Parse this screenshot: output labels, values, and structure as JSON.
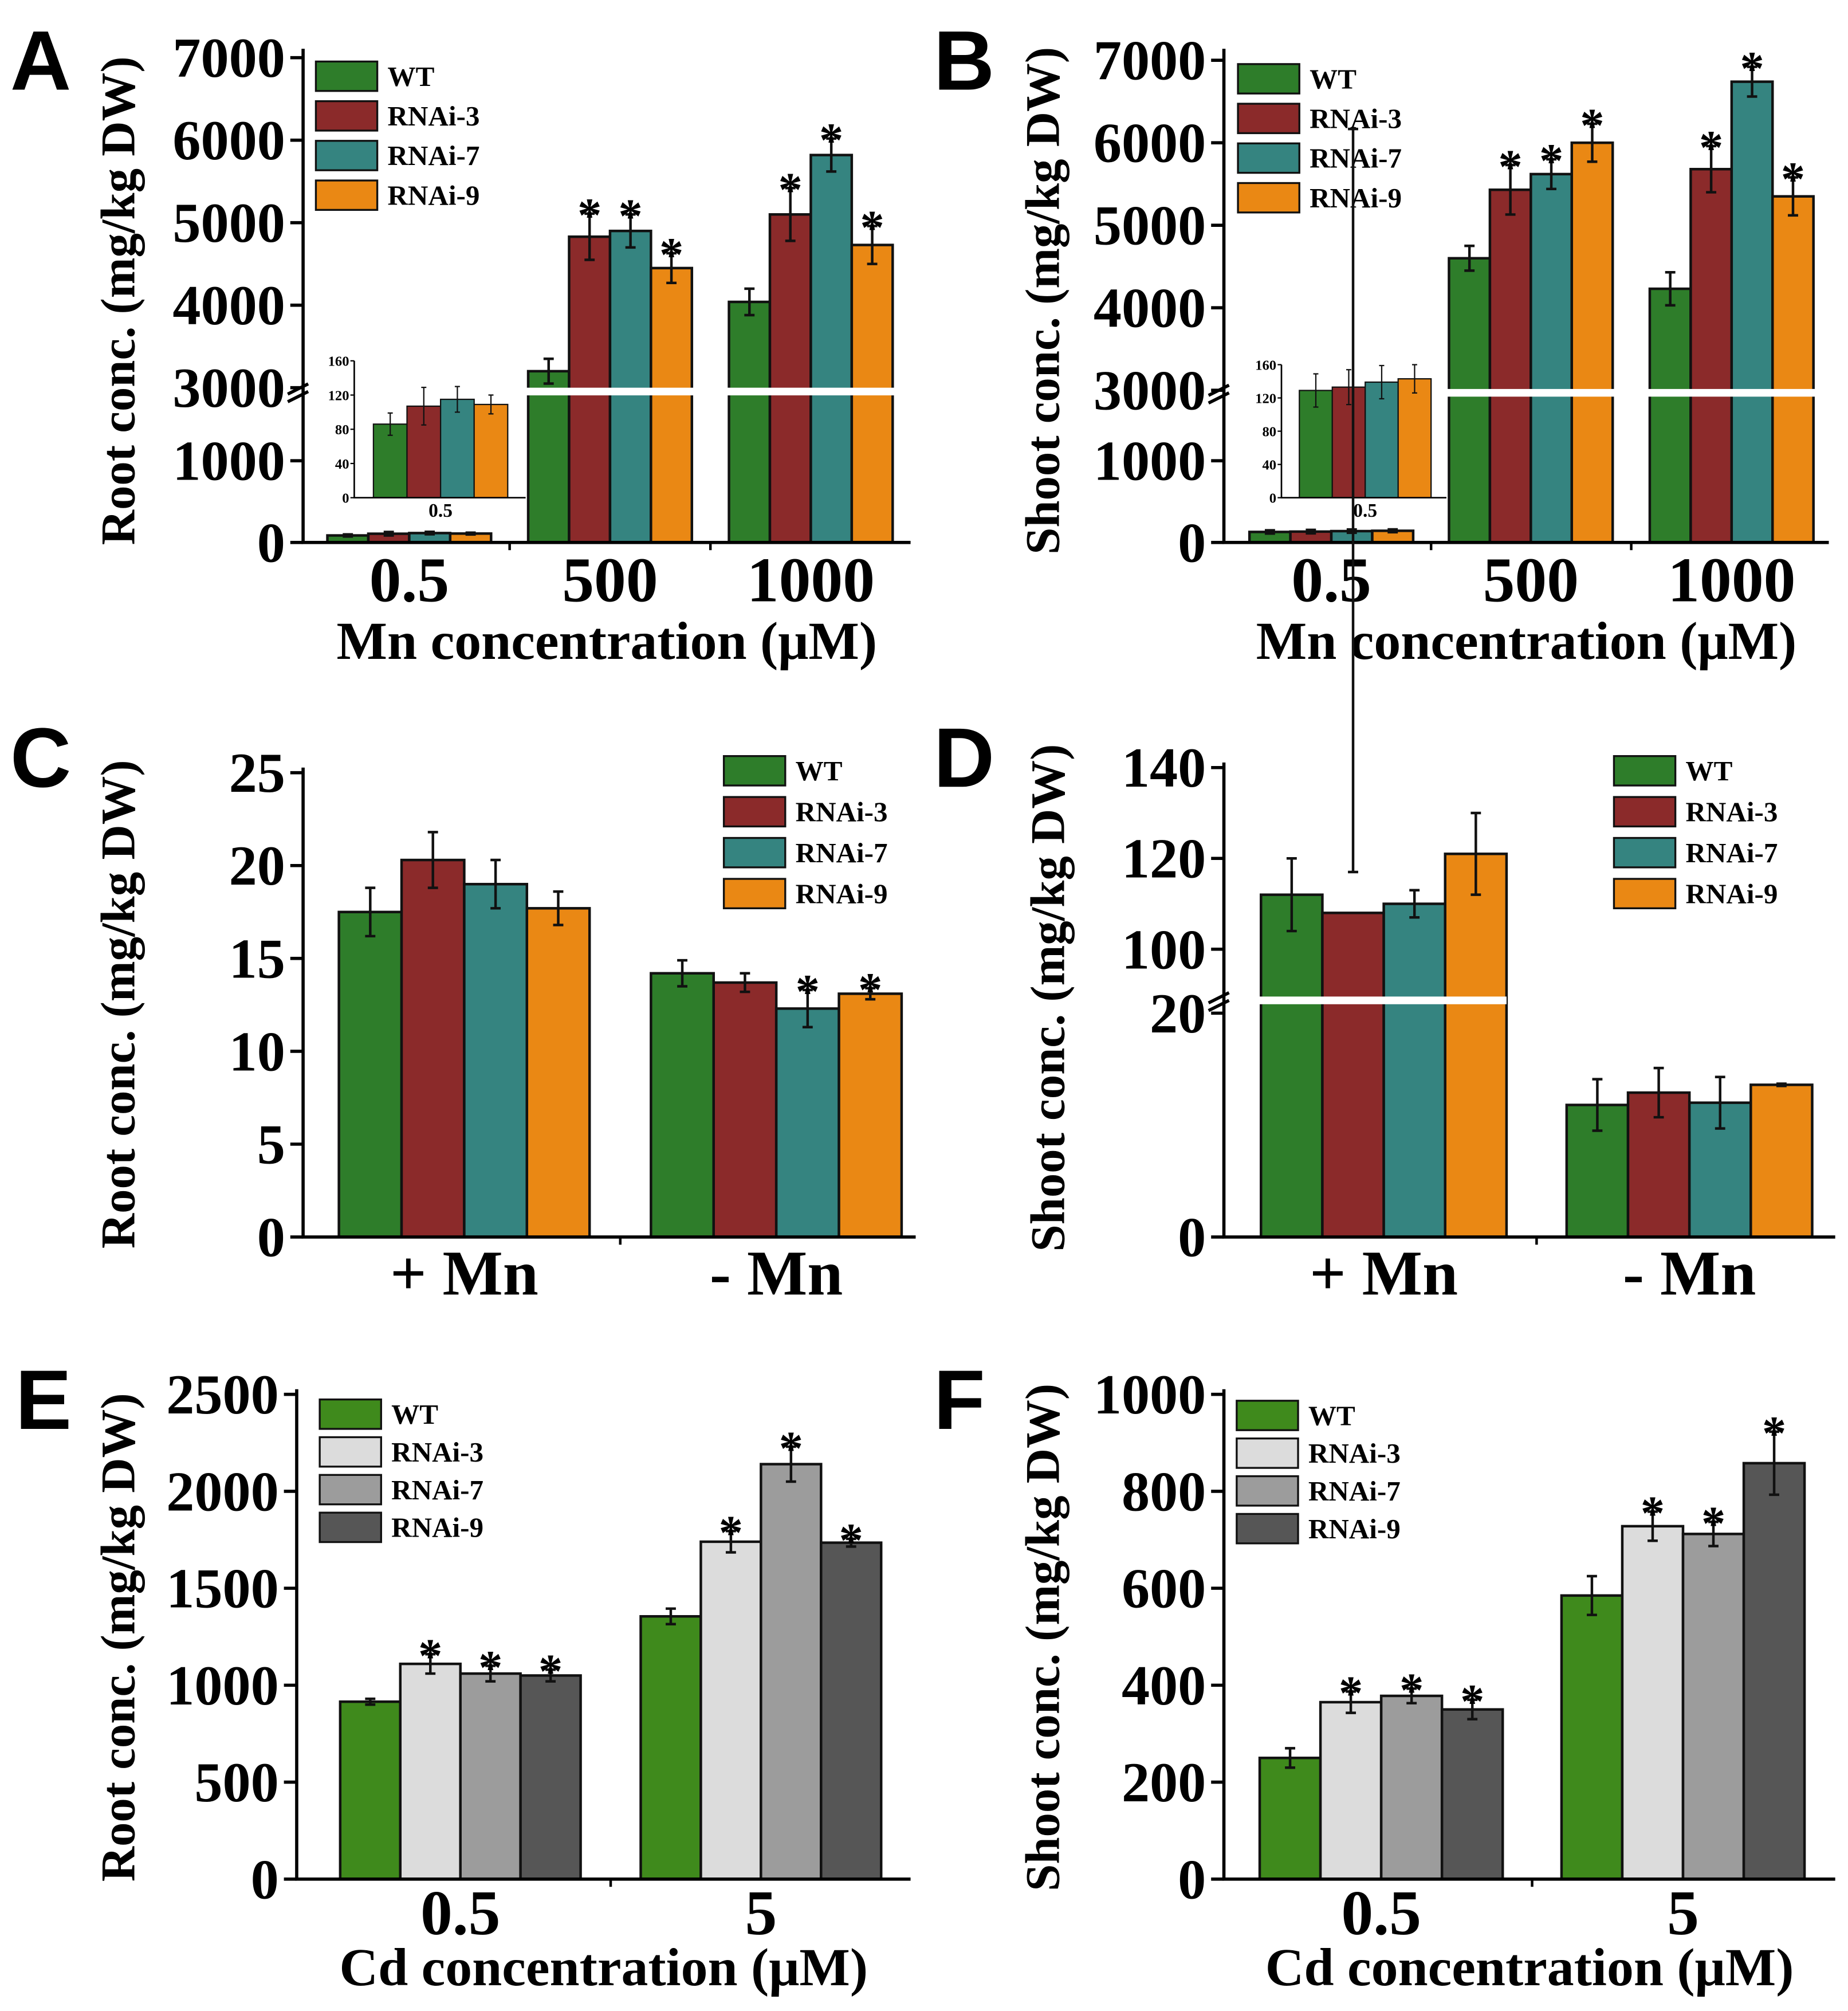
{
  "colors": {
    "WT": "#2e7d2a",
    "RNAi-3": "#8b2a2a",
    "RNAi-7": "#358480",
    "RNAi-9": "#ea8814",
    "cd_WT": "#3f8a1c",
    "cd_RNAi-3": "#dcdcdc",
    "cd_RNAi-7": "#9c9c9c",
    "cd_RNAi-9": "#565656"
  },
  "chart_data": [
    {
      "panel": "A",
      "type": "bar",
      "ylabel": "Root conc. (mg/kg DW)",
      "xlabel": "Mn concentration (μM)",
      "categories": [
        "0.5",
        "500",
        "1000"
      ],
      "y_segments": [
        [
          0,
          1800
        ],
        [
          3000,
          7000
        ]
      ],
      "yticks": [
        0,
        1000,
        3000,
        4000,
        5000,
        6000,
        7000
      ],
      "palette": "mn",
      "series": [
        {
          "name": "WT",
          "values": [
            86,
            3200,
            4040
          ],
          "errors": [
            13,
            150,
            160
          ],
          "stars": [
            false,
            false,
            false
          ]
        },
        {
          "name": "RNAi-3",
          "values": [
            107,
            4830,
            5100
          ],
          "errors": [
            22,
            280,
            320
          ],
          "stars": [
            false,
            true,
            true
          ]
        },
        {
          "name": "RNAi-7",
          "values": [
            115,
            4900,
            5820
          ],
          "errors": [
            15,
            200,
            200
          ],
          "stars": [
            false,
            true,
            true
          ]
        },
        {
          "name": "RNAi-9",
          "values": [
            109,
            4450,
            4730
          ],
          "errors": [
            11,
            180,
            230
          ],
          "stars": [
            false,
            true,
            true
          ]
        }
      ],
      "inset": {
        "category": "0.5",
        "yticks": [
          0,
          40,
          80,
          120,
          160
        ],
        "ylim": [
          0,
          160
        ]
      }
    },
    {
      "panel": "B",
      "type": "bar",
      "ylabel": "Shoot conc. (mg/kg DW)",
      "xlabel": "Mn concentration (μM)",
      "categories": [
        "0.5",
        "500",
        "1000"
      ],
      "y_segments": [
        [
          0,
          1800
        ],
        [
          3000,
          7000
        ]
      ],
      "yticks": [
        0,
        1000,
        3000,
        4000,
        5000,
        6000,
        7000
      ],
      "palette": "mn",
      "series": [
        {
          "name": "WT",
          "values": [
            129,
            4600,
            4230
          ],
          "errors": [
            20,
            150,
            200
          ],
          "stars": [
            false,
            false,
            false
          ]
        },
        {
          "name": "RNAi-3",
          "values": [
            133,
            5430,
            5680
          ],
          "errors": [
            21,
            300,
            280
          ],
          "stars": [
            false,
            true,
            true
          ]
        },
        {
          "name": "RNAi-7",
          "values": [
            139,
            5620,
            6740
          ],
          "errors": [
            20,
            180,
            180
          ],
          "stars": [
            false,
            true,
            true
          ]
        },
        {
          "name": "RNAi-9",
          "values": [
            143,
            6000,
            5350
          ],
          "errors": [
            17,
            230,
            230
          ],
          "stars": [
            false,
            true,
            true
          ]
        }
      ],
      "inset": {
        "category": "0.5",
        "yticks": [
          0,
          40,
          80,
          120,
          160
        ],
        "ylim": [
          0,
          160
        ]
      }
    },
    {
      "panel": "C",
      "type": "bar",
      "ylabel": "Root conc. (mg/kg DW)",
      "xlabel": "",
      "categories": [
        "+ Mn",
        "- Mn"
      ],
      "y_segments": [
        [
          0,
          25
        ]
      ],
      "yticks": [
        0,
        5,
        10,
        15,
        20,
        25
      ],
      "palette": "mn",
      "series": [
        {
          "name": "WT",
          "values": [
            17.5,
            14.2
          ],
          "errors": [
            1.3,
            0.7
          ],
          "stars": [
            false,
            false
          ]
        },
        {
          "name": "RNAi-3",
          "values": [
            20.3,
            13.7
          ],
          "errors": [
            1.5,
            0.5
          ],
          "stars": [
            false,
            false
          ]
        },
        {
          "name": "RNAi-7",
          "values": [
            19.0,
            12.3
          ],
          "errors": [
            1.3,
            1.0
          ],
          "stars": [
            false,
            true
          ]
        },
        {
          "name": "RNAi-9",
          "values": [
            17.7,
            13.1
          ],
          "errors": [
            0.9,
            0.3
          ],
          "stars": [
            false,
            true
          ]
        }
      ]
    },
    {
      "panel": "D",
      "type": "bar",
      "ylabel": "Shoot conc. (mg/kg DW)",
      "xlabel": "",
      "categories": [
        "+ Mn",
        "- Mn"
      ],
      "y_segments": [
        [
          0,
          20
        ],
        [
          100,
          140
        ]
      ],
      "yticks": [
        0,
        20,
        100,
        120,
        140
      ],
      "palette": "mn",
      "series": [
        {
          "name": "WT",
          "values": [
            112,
            11.8
          ],
          "errors": [
            8,
            2.3
          ],
          "stars": [
            false,
            false
          ]
        },
        {
          "name": "RNAi-3",
          "values": [
            108,
            12.9
          ],
          "errors": [
            9,
            2.2
          ],
          "stars": [
            false,
            false
          ]
        },
        {
          "name": "RNAi-7",
          "values": [
            110,
            12.0
          ],
          "errors": [
            3,
            2.3
          ],
          "stars": [
            false,
            false
          ]
        },
        {
          "name": "RNAi-9",
          "values": [
            121,
            13.6
          ],
          "errors": [
            9,
            0.1
          ],
          "stars": [
            false,
            false
          ]
        }
      ]
    },
    {
      "panel": "E",
      "type": "bar",
      "ylabel": "Root conc. (mg/kg DW)",
      "xlabel": "Cd concentration (μM)",
      "categories": [
        "0.5",
        "5"
      ],
      "y_segments": [
        [
          0,
          2500
        ]
      ],
      "yticks": [
        0,
        500,
        1000,
        1500,
        2000,
        2500
      ],
      "palette": "cd",
      "series": [
        {
          "name": "WT",
          "values": [
            915,
            1355
          ],
          "errors": [
            15,
            40
          ],
          "stars": [
            false,
            false
          ]
        },
        {
          "name": "RNAi-3",
          "values": [
            1110,
            1740
          ],
          "errors": [
            50,
            55
          ],
          "stars": [
            true,
            true
          ]
        },
        {
          "name": "RNAi-7",
          "values": [
            1060,
            2140
          ],
          "errors": [
            40,
            90
          ],
          "stars": [
            true,
            true
          ]
        },
        {
          "name": "RNAi-9",
          "values": [
            1050,
            1735
          ],
          "errors": [
            30,
            20
          ],
          "stars": [
            true,
            true
          ]
        }
      ]
    },
    {
      "panel": "F",
      "type": "bar",
      "ylabel": "Shoot conc. (mg/kg DW)",
      "xlabel": "Cd concentration (μM)",
      "categories": [
        "0.5",
        "5"
      ],
      "y_segments": [
        [
          0,
          1000
        ]
      ],
      "yticks": [
        0,
        200,
        400,
        600,
        800,
        1000
      ],
      "palette": "cd",
      "series": [
        {
          "name": "WT",
          "values": [
            250,
            585
          ],
          "errors": [
            20,
            40
          ],
          "stars": [
            false,
            false
          ]
        },
        {
          "name": "RNAi-3",
          "values": [
            365,
            728
          ],
          "errors": [
            22,
            30
          ],
          "stars": [
            true,
            true
          ]
        },
        {
          "name": "RNAi-7",
          "values": [
            378,
            712
          ],
          "errors": [
            15,
            25
          ],
          "stars": [
            true,
            true
          ]
        },
        {
          "name": "RNAi-9",
          "values": [
            350,
            858
          ],
          "errors": [
            20,
            65
          ],
          "stars": [
            true,
            true
          ]
        }
      ]
    }
  ],
  "star_symbol": "*"
}
